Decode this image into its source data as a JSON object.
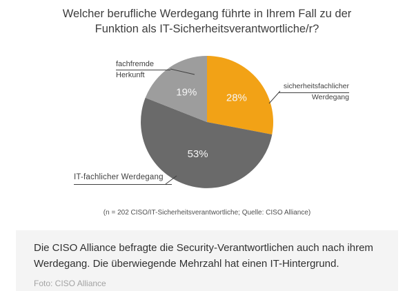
{
  "title": "Welcher berufliche Werdegang führte in Ihrem Fall zu der Funktion als IT-Sicherheitsverantwortliche/r?",
  "chart_data": {
    "type": "pie",
    "title": "Welcher berufliche Werdegang führte in Ihrem Fall zu der Funktion als IT-Sicherheitsverantwortliche/r?",
    "direction": "clockwise",
    "start_angle_deg": 0,
    "slices": [
      {
        "label": "sicherheitsfachlicher Werdegang",
        "value": 28,
        "pct_label": "28%",
        "color": "#F2A216"
      },
      {
        "label": "IT-fachlicher Werdegang",
        "value": 53,
        "pct_label": "53%",
        "color": "#6A6A6A"
      },
      {
        "label": "fachfremde Herkunft",
        "value": 19,
        "pct_label": "19%",
        "color": "#9D9D9D"
      }
    ],
    "note": "(n = 202 CISO/IT-Sicherheitsverantwortliche; Quelle: CISO Alliance)",
    "value_label_color": "#f6f6f6"
  },
  "callouts": {
    "fachfremde": {
      "line1": "fachfremde",
      "line2": "Herkunft"
    },
    "sicherheit": {
      "line1": "sicherheitsfachlicher",
      "line2": "Werdegang"
    },
    "itfach": {
      "line1": "IT-fachlicher Werdegang"
    }
  },
  "caption": "(n = 202 CISO/IT-Sicherheitsverantwortliche; Quelle: CISO Alliance)",
  "footer": {
    "text": "Die CISO Alliance befragte die Security-Verantwortlichen auch nach ihrem Werdegang. Die überwiegende Mehrzahl hat einen IT-Hintergrund.",
    "credit": "Foto: CISO Alliance"
  }
}
